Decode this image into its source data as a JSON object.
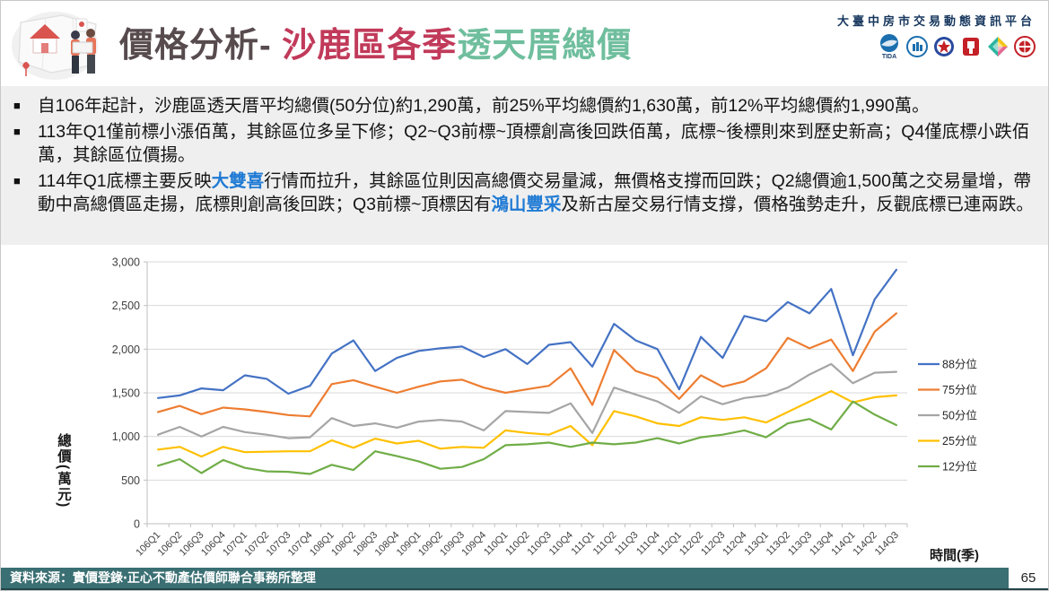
{
  "header": {
    "title_part1": "價格分析- ",
    "title_part2": "沙鹿區各季",
    "title_part3": "透天厝總價",
    "platform_name": "大臺中房市交易動態資訊平台",
    "tida_caption": "TIDA",
    "logos": [
      "tida-logo",
      "association-building-logo",
      "government-emblem-logo",
      "land-agency-logo",
      "platform-diamond-logo",
      "appraisers-union-logo"
    ],
    "accent_red": "#c13a5a",
    "accent_green": "#6fbe9d"
  },
  "bullets": {
    "b1": "自106年起計，沙鹿區透天厝平均總價(50分位)約1,290萬，前25%平均總價約1,630萬，前12%平均總價約1,990萬。",
    "b2": "113年Q1僅前標小漲佰萬，其餘區位多呈下修；Q2~Q3前標~頂標創高後回跌佰萬，底標~後標則來到歷史新高；Q4僅底標小跌佰萬，其餘區位價揚。",
    "b3_seg1": "114年Q1底標主要反映",
    "b3_hl1": "大雙喜",
    "b3_seg2": "行情而拉升，其餘區位則因高總價交易量減，無價格支撐而回跌；Q2總價逾1,500萬之交易量增，帶動中高總價區走揚，底標則創高後回跌；Q3前標~頂標因有",
    "b3_hl2": "鴻山豐采",
    "b3_seg3": "及新古屋交易行情支撐，價格強勢走升，反觀底標已連兩跌。"
  },
  "chart_data": {
    "type": "line",
    "title": "",
    "xlabel": "時間(季)",
    "ylabel": "總價(萬元)",
    "ylim": [
      0,
      3000
    ],
    "ytick_step": 500,
    "grid": true,
    "legend_position": "right",
    "categories": [
      "106Q1",
      "106Q2",
      "106Q3",
      "106Q4",
      "107Q1",
      "107Q2",
      "107Q3",
      "107Q4",
      "108Q1",
      "108Q2",
      "108Q3",
      "108Q4",
      "109Q1",
      "109Q2",
      "109Q3",
      "109Q4",
      "110Q1",
      "110Q2",
      "110Q3",
      "110Q4",
      "111Q1",
      "111Q2",
      "111Q3",
      "111Q4",
      "112Q1",
      "112Q2",
      "112Q3",
      "112Q4",
      "113Q1",
      "113Q2",
      "113Q3",
      "113Q4",
      "114Q1",
      "114Q2",
      "114Q3"
    ],
    "series": [
      {
        "name": "88分位",
        "color": "#4472C4",
        "values": [
          1440,
          1470,
          1550,
          1530,
          1700,
          1660,
          1490,
          1580,
          1950,
          2100,
          1750,
          1900,
          1980,
          2010,
          2030,
          1910,
          2000,
          1830,
          2050,
          2080,
          1800,
          2290,
          2100,
          2000,
          1540,
          2140,
          1900,
          2380,
          2320,
          2540,
          2410,
          2690,
          1930,
          2570,
          2910
        ]
      },
      {
        "name": "75分位",
        "color": "#ED7D31",
        "values": [
          1280,
          1350,
          1255,
          1330,
          1310,
          1280,
          1245,
          1230,
          1600,
          1645,
          1570,
          1500,
          1570,
          1630,
          1650,
          1560,
          1500,
          1540,
          1580,
          1780,
          1360,
          1990,
          1750,
          1670,
          1430,
          1700,
          1570,
          1630,
          1780,
          2130,
          2010,
          2110,
          1750,
          2200,
          2410
        ]
      },
      {
        "name": "50分位",
        "color": "#A5A5A5",
        "values": [
          1020,
          1110,
          1000,
          1110,
          1050,
          1020,
          980,
          990,
          1210,
          1120,
          1150,
          1100,
          1170,
          1190,
          1170,
          1070,
          1290,
          1280,
          1270,
          1380,
          1040,
          1560,
          1480,
          1400,
          1270,
          1460,
          1370,
          1440,
          1470,
          1560,
          1710,
          1830,
          1610,
          1730,
          1740
        ]
      },
      {
        "name": "25分位",
        "color": "#FFC000",
        "values": [
          850,
          880,
          770,
          880,
          820,
          825,
          830,
          830,
          955,
          870,
          975,
          920,
          950,
          860,
          880,
          870,
          1070,
          1040,
          1020,
          1120,
          900,
          1290,
          1230,
          1150,
          1120,
          1220,
          1190,
          1220,
          1160,
          1280,
          1400,
          1520,
          1390,
          1450,
          1470
        ]
      },
      {
        "name": "12分位",
        "color": "#70AD47",
        "values": [
          665,
          740,
          580,
          730,
          640,
          600,
          595,
          570,
          675,
          615,
          830,
          775,
          715,
          630,
          650,
          740,
          900,
          910,
          930,
          880,
          930,
          910,
          930,
          980,
          920,
          990,
          1020,
          1070,
          990,
          1150,
          1200,
          1080,
          1400,
          1250,
          1130
        ]
      }
    ]
  },
  "footer": {
    "source": "資料來源：實價登錄‧正心不動產估價師聯合事務所整理",
    "page": "65"
  }
}
